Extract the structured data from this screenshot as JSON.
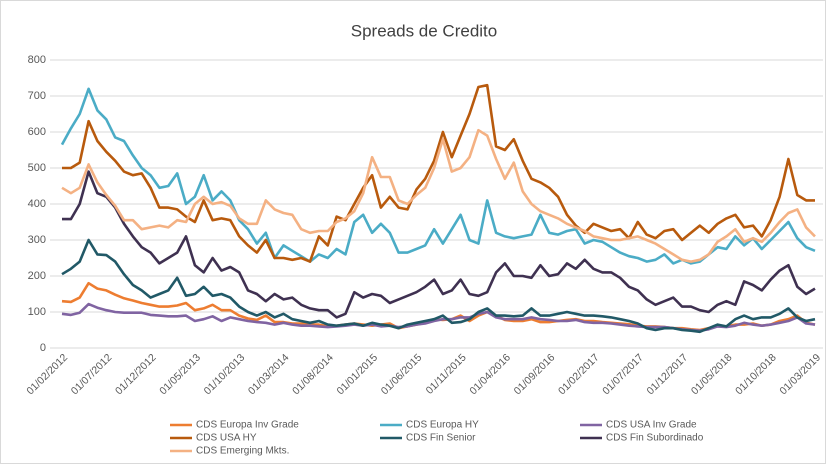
{
  "chart_data": {
    "type": "line",
    "title": "Spreads de Credito",
    "categories": [
      "01/02/2012",
      null,
      null,
      null,
      null,
      "01/07/2012",
      null,
      null,
      null,
      null,
      "01/12/2012",
      null,
      null,
      null,
      null,
      "01/05/2013",
      null,
      null,
      null,
      null,
      "01/10/2013",
      null,
      null,
      null,
      null,
      "01/03/2014",
      null,
      null,
      null,
      null,
      "01/08/2014",
      null,
      null,
      null,
      null,
      "01/01/2015",
      null,
      null,
      null,
      null,
      "01/06/2015",
      null,
      null,
      null,
      null,
      "01/11/2015",
      null,
      null,
      null,
      null,
      "01/04/2016",
      null,
      null,
      null,
      null,
      "01/09/2016",
      null,
      null,
      null,
      null,
      "01/02/2017",
      null,
      null,
      null,
      null,
      "01/07/2017",
      null,
      null,
      null,
      null,
      "01/12/2017",
      null,
      null,
      null,
      null,
      "01/05/2018",
      null,
      null,
      null,
      null,
      "01/10/2018",
      null,
      null,
      null,
      null,
      "01/03/2019"
    ],
    "series": [
      {
        "name": "CDS Europa Inv Grade",
        "color": "#ed7d31",
        "values": [
          130,
          128,
          140,
          180,
          165,
          160,
          148,
          138,
          132,
          125,
          120,
          115,
          115,
          118,
          125,
          105,
          110,
          120,
          105,
          105,
          90,
          82,
          78,
          90,
          72,
          72,
          68,
          68,
          65,
          65,
          60,
          62,
          65,
          68,
          65,
          62,
          65,
          68,
          55,
          60,
          65,
          70,
          80,
          78,
          80,
          90,
          75,
          90,
          100,
          90,
          78,
          75,
          75,
          80,
          72,
          72,
          75,
          78,
          80,
          75,
          75,
          72,
          70,
          68,
          66,
          62,
          60,
          60,
          58,
          55,
          55,
          52,
          50,
          55,
          62,
          60,
          65,
          65,
          68,
          62,
          65,
          75,
          80,
          90,
          70,
          65
        ]
      },
      {
        "name": "CDS Europa HY",
        "color": "#4bacc6",
        "values": [
          565,
          610,
          650,
          720,
          660,
          635,
          585,
          575,
          535,
          500,
          480,
          445,
          450,
          485,
          400,
          420,
          480,
          410,
          435,
          410,
          355,
          330,
          290,
          320,
          250,
          285,
          270,
          255,
          240,
          260,
          250,
          275,
          260,
          350,
          370,
          320,
          345,
          320,
          265,
          265,
          275,
          285,
          330,
          290,
          330,
          370,
          300,
          290,
          410,
          320,
          310,
          305,
          310,
          315,
          370,
          320,
          315,
          325,
          330,
          290,
          300,
          295,
          280,
          265,
          255,
          250,
          240,
          245,
          260,
          235,
          245,
          235,
          240,
          260,
          280,
          275,
          310,
          285,
          305,
          275,
          300,
          325,
          350,
          305,
          280,
          270
        ]
      },
      {
        "name": "CDS USA Inv Grade",
        "color": "#8064a2",
        "values": [
          95,
          92,
          98,
          122,
          112,
          105,
          100,
          98,
          98,
          98,
          92,
          90,
          88,
          88,
          90,
          75,
          80,
          88,
          75,
          85,
          80,
          75,
          72,
          70,
          65,
          70,
          65,
          62,
          62,
          60,
          58,
          60,
          62,
          65,
          62,
          65,
          60,
          62,
          58,
          60,
          65,
          68,
          75,
          80,
          80,
          85,
          85,
          95,
          100,
          85,
          80,
          80,
          80,
          85,
          80,
          78,
          75,
          75,
          78,
          72,
          70,
          70,
          68,
          65,
          62,
          60,
          58,
          58,
          58,
          55,
          52,
          50,
          48,
          52,
          60,
          58,
          62,
          70,
          65,
          62,
          65,
          70,
          75,
          85,
          68,
          65
        ]
      },
      {
        "name": "CDS USA HY",
        "color": "#b85a0d",
        "values": [
          500,
          500,
          515,
          630,
          575,
          545,
          520,
          490,
          480,
          485,
          445,
          390,
          390,
          385,
          365,
          350,
          410,
          355,
          360,
          355,
          310,
          285,
          265,
          300,
          250,
          250,
          245,
          250,
          240,
          310,
          285,
          365,
          355,
          400,
          445,
          480,
          390,
          420,
          390,
          385,
          440,
          470,
          520,
          600,
          530,
          590,
          650,
          725,
          730,
          560,
          550,
          580,
          520,
          470,
          460,
          445,
          420,
          370,
          340,
          320,
          345,
          335,
          325,
          330,
          305,
          350,
          315,
          305,
          325,
          330,
          300,
          320,
          340,
          320,
          345,
          360,
          370,
          335,
          340,
          310,
          355,
          420,
          525,
          425,
          410,
          410
        ]
      },
      {
        "name": "CDS Fin Senior",
        "color": "#215967",
        "values": [
          205,
          220,
          240,
          300,
          260,
          258,
          240,
          205,
          175,
          160,
          140,
          150,
          160,
          195,
          145,
          150,
          170,
          145,
          150,
          140,
          115,
          100,
          90,
          100,
          85,
          95,
          80,
          75,
          70,
          75,
          65,
          62,
          65,
          68,
          62,
          70,
          65,
          62,
          55,
          65,
          70,
          75,
          80,
          90,
          70,
          72,
          80,
          100,
          110,
          90,
          90,
          88,
          90,
          110,
          90,
          90,
          95,
          100,
          95,
          90,
          90,
          88,
          85,
          80,
          75,
          68,
          55,
          50,
          55,
          55,
          50,
          48,
          45,
          55,
          65,
          60,
          80,
          90,
          80,
          85,
          85,
          95,
          110,
          85,
          75,
          80
        ]
      },
      {
        "name": "CDS Fin Subordinado",
        "color": "#3f3151",
        "values": [
          358,
          358,
          400,
          490,
          430,
          420,
          390,
          345,
          310,
          280,
          265,
          235,
          250,
          265,
          310,
          230,
          210,
          250,
          215,
          225,
          210,
          160,
          150,
          130,
          150,
          135,
          140,
          120,
          110,
          105,
          105,
          85,
          95,
          155,
          140,
          150,
          145,
          125,
          135,
          145,
          155,
          170,
          190,
          150,
          160,
          190,
          150,
          145,
          155,
          210,
          235,
          200,
          200,
          195,
          230,
          200,
          205,
          235,
          220,
          245,
          220,
          210,
          210,
          195,
          170,
          160,
          135,
          120,
          130,
          140,
          115,
          115,
          105,
          100,
          120,
          130,
          120,
          185,
          175,
          160,
          190,
          215,
          230,
          170,
          150,
          165
        ]
      },
      {
        "name": "CDS Emerging Mkts.",
        "color": "#f4b183",
        "values": [
          445,
          430,
          445,
          510,
          460,
          425,
          395,
          355,
          355,
          330,
          335,
          340,
          335,
          355,
          350,
          400,
          420,
          400,
          405,
          395,
          360,
          345,
          345,
          410,
          385,
          375,
          370,
          330,
          320,
          325,
          325,
          350,
          360,
          380,
          430,
          530,
          475,
          475,
          410,
          400,
          425,
          445,
          500,
          580,
          490,
          500,
          530,
          605,
          590,
          525,
          470,
          515,
          435,
          400,
          380,
          370,
          360,
          345,
          335,
          325,
          310,
          305,
          300,
          300,
          305,
          310,
          300,
          290,
          275,
          260,
          245,
          240,
          245,
          260,
          295,
          310,
          330,
          295,
          305,
          295,
          320,
          350,
          375,
          385,
          335,
          310
        ]
      }
    ],
    "ylim": [
      0,
      800
    ],
    "yticks": [
      0,
      100,
      200,
      300,
      400,
      500,
      600,
      700,
      800
    ],
    "grid": true
  }
}
